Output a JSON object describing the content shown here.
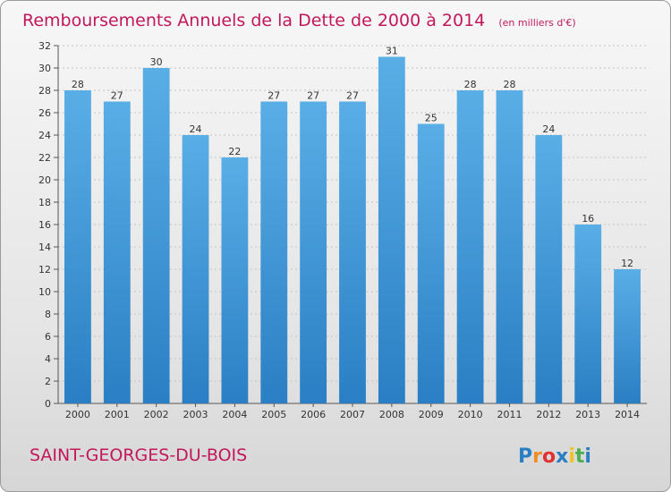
{
  "chart_data": {
    "type": "bar",
    "title": "Remboursements Annuels de la Dette de 2000 à 2014",
    "unit": "(en milliers d'€)",
    "categories": [
      "2000",
      "2001",
      "2002",
      "2003",
      "2004",
      "2005",
      "2006",
      "2007",
      "2008",
      "2009",
      "2010",
      "2011",
      "2012",
      "2013",
      "2014"
    ],
    "values": [
      28,
      27,
      30,
      24,
      22,
      27,
      27,
      27,
      31,
      25,
      28,
      28,
      24,
      16,
      12
    ],
    "ylim": [
      0,
      32
    ],
    "yticks": [
      0,
      2,
      4,
      6,
      8,
      10,
      12,
      14,
      16,
      18,
      20,
      22,
      24,
      26,
      28,
      30,
      32
    ],
    "grid": true,
    "legend": "none"
  },
  "commune": "SAINT-GEORGES-DU-BOIS",
  "logo": {
    "text": "Proxiti",
    "letters": [
      "P",
      "r",
      "o",
      "x",
      "i",
      "t",
      "i"
    ]
  },
  "colors": {
    "bar_top": "#5aaee6",
    "bar_bottom": "#2a7fc4",
    "accent": "#c2185b",
    "logo": [
      "#2a7fc4",
      "#f28c28",
      "#e03030",
      "#2a7fc4",
      "#f2c028",
      "#4caf50",
      "#2a7fc4"
    ]
  }
}
